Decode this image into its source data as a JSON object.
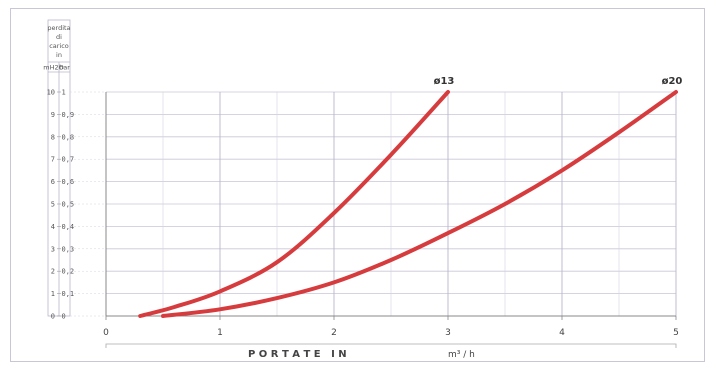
{
  "chart_data": {
    "type": "line",
    "title": "",
    "ylabel_block": [
      "perdita",
      "di",
      "carico",
      "in"
    ],
    "y_units": [
      "mH2O",
      "bar"
    ],
    "xlabel": "P O R T A T E   I N",
    "xunit": "m³ / h",
    "xlim": [
      0,
      5
    ],
    "ylim": [
      0,
      10
    ],
    "x_ticks": [
      0,
      1,
      2,
      3,
      4,
      5
    ],
    "y_ticks_m": [
      "0",
      "1",
      "2",
      "3",
      "4",
      "5",
      "6",
      "7",
      "8",
      "9",
      "10"
    ],
    "y_ticks_bar": [
      "0",
      "0,1",
      "0,2",
      "0,3",
      "0,4",
      "0,5",
      "0,6",
      "0,7",
      "0,8",
      "0,9",
      "1"
    ],
    "grid": true,
    "series": [
      {
        "name": "ø13",
        "x": [
          0.3,
          0.6,
          1.0,
          1.5,
          2.0,
          2.5,
          3.0
        ],
        "y": [
          0.0,
          0.4,
          1.1,
          2.4,
          4.6,
          7.2,
          10.0
        ]
      },
      {
        "name": "ø20",
        "x": [
          0.5,
          1.0,
          1.5,
          2.0,
          2.5,
          3.0,
          3.5,
          4.0,
          4.5,
          5.0
        ],
        "y": [
          0.0,
          0.3,
          0.8,
          1.5,
          2.5,
          3.7,
          5.0,
          6.5,
          8.2,
          10.0
        ]
      }
    ],
    "line_color": "#d63c3e"
  }
}
